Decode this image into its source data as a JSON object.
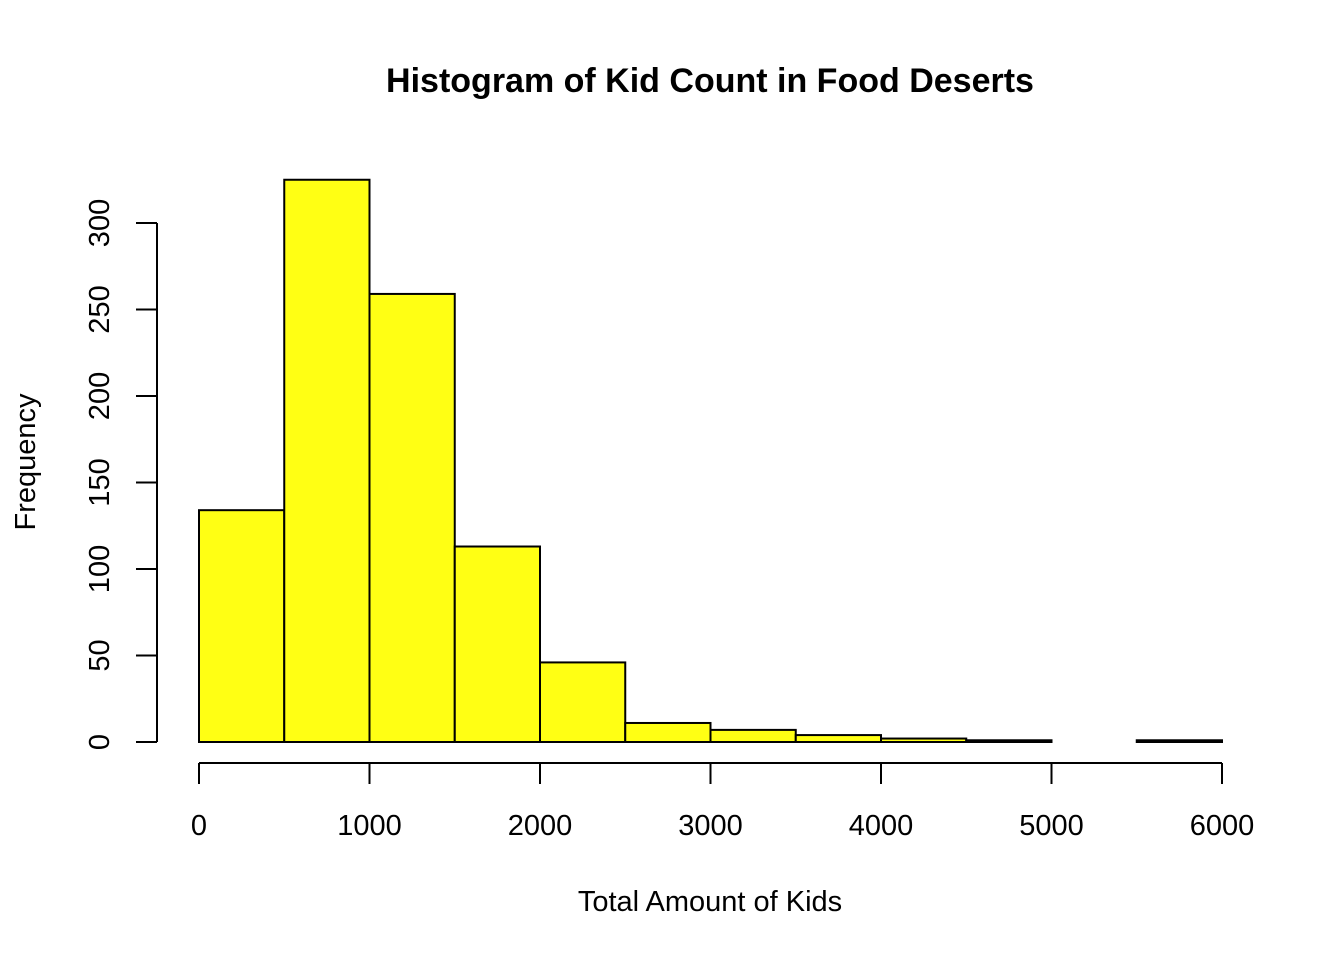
{
  "chart_data": {
    "type": "bar",
    "title": "Histogram of Kid Count in Food Deserts",
    "xlabel": "Total Amount of Kids",
    "ylabel": "Frequency",
    "bin_edges": [
      0,
      500,
      1000,
      1500,
      2000,
      2500,
      3000,
      3500,
      4000,
      4500,
      5000,
      5500,
      6000
    ],
    "values": [
      134,
      325,
      259,
      113,
      46,
      11,
      7,
      4,
      2,
      1,
      0,
      1
    ],
    "xlim": [
      0,
      6000
    ],
    "ylim": [
      0,
      325
    ],
    "xticks": [
      0,
      1000,
      2000,
      3000,
      4000,
      5000,
      6000
    ],
    "yticks": [
      0,
      50,
      100,
      150,
      200,
      250,
      300
    ],
    "bar_color": "#ffff14",
    "grid": false,
    "legend": "none"
  }
}
